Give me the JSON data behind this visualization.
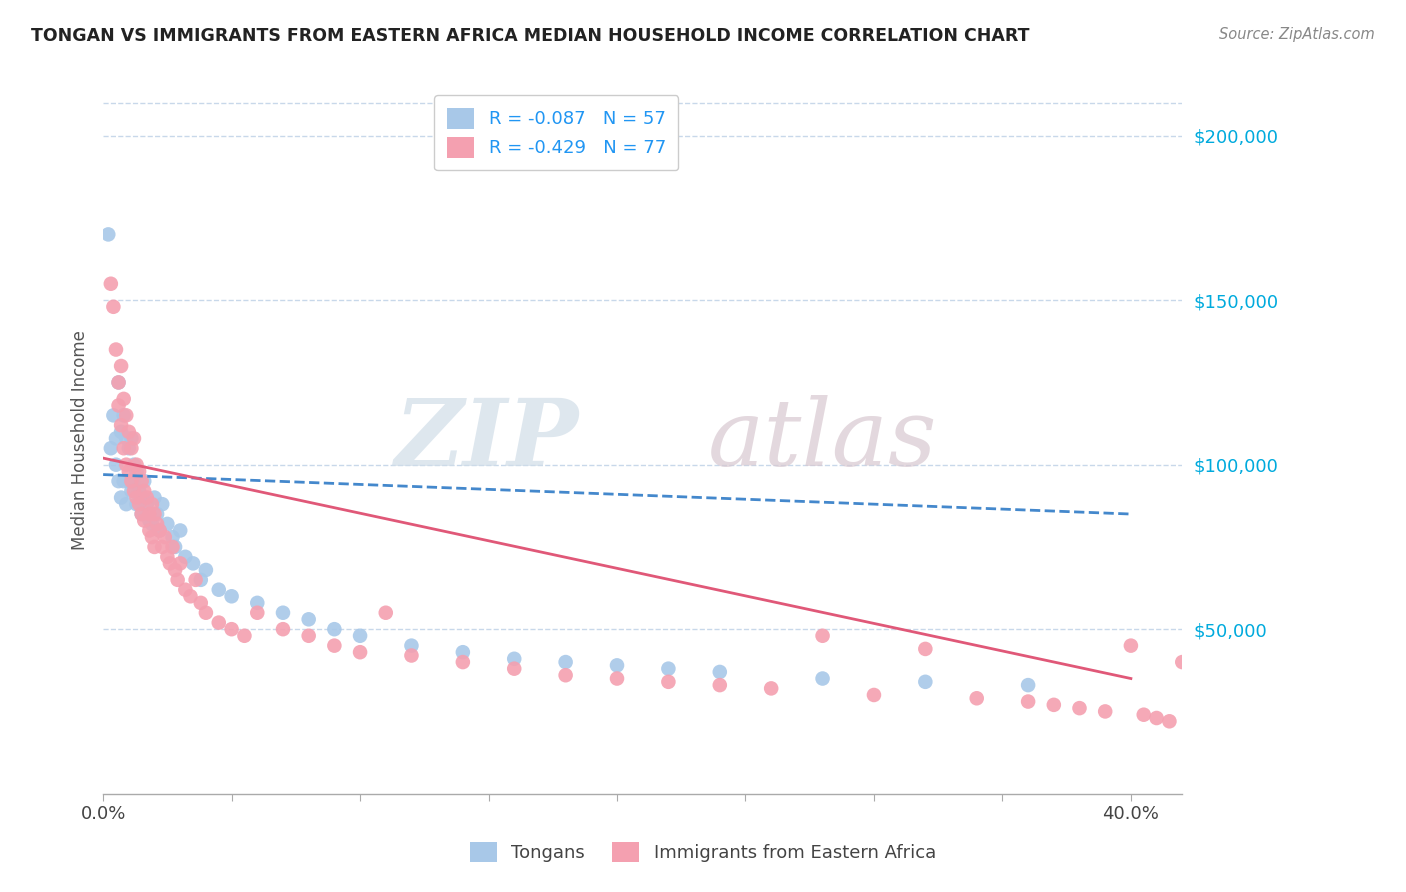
{
  "title": "TONGAN VS IMMIGRANTS FROM EASTERN AFRICA MEDIAN HOUSEHOLD INCOME CORRELATION CHART",
  "source": "Source: ZipAtlas.com",
  "ylabel": "Median Household Income",
  "legend_tongans": "Tongans",
  "legend_eastern_africa": "Immigrants from Eastern Africa",
  "blue_color": "#a8c8e8",
  "pink_color": "#f4a0b0",
  "blue_line_color": "#4488cc",
  "pink_line_color": "#e05878",
  "background_color": "#ffffff",
  "grid_color": "#c8d8ea",
  "watermark_zip": "ZIP",
  "watermark_atlas": "atlas",
  "ytick_labels": [
    "$50,000",
    "$100,000",
    "$150,000",
    "$200,000"
  ],
  "ytick_values": [
    50000,
    100000,
    150000,
    200000
  ],
  "xlim": [
    0.0,
    0.42
  ],
  "ylim": [
    0,
    215000
  ],
  "blue_r": "-0.087",
  "blue_n": "57",
  "pink_r": "-0.429",
  "pink_n": "77",
  "blue_scatter_x": [
    0.002,
    0.003,
    0.004,
    0.005,
    0.005,
    0.006,
    0.006,
    0.007,
    0.007,
    0.008,
    0.008,
    0.009,
    0.009,
    0.01,
    0.01,
    0.011,
    0.011,
    0.012,
    0.012,
    0.013,
    0.013,
    0.014,
    0.015,
    0.015,
    0.016,
    0.017,
    0.018,
    0.019,
    0.02,
    0.021,
    0.022,
    0.023,
    0.025,
    0.027,
    0.028,
    0.03,
    0.032,
    0.035,
    0.038,
    0.04,
    0.045,
    0.05,
    0.06,
    0.07,
    0.08,
    0.09,
    0.1,
    0.12,
    0.14,
    0.16,
    0.18,
    0.2,
    0.22,
    0.24,
    0.28,
    0.32,
    0.36
  ],
  "blue_scatter_y": [
    170000,
    105000,
    115000,
    108000,
    100000,
    125000,
    95000,
    110000,
    90000,
    115000,
    95000,
    108000,
    88000,
    105000,
    95000,
    108000,
    92000,
    100000,
    95000,
    98000,
    88000,
    92000,
    90000,
    85000,
    95000,
    88000,
    83000,
    82000,
    90000,
    85000,
    80000,
    88000,
    82000,
    78000,
    75000,
    80000,
    72000,
    70000,
    65000,
    68000,
    62000,
    60000,
    58000,
    55000,
    53000,
    50000,
    48000,
    45000,
    43000,
    41000,
    40000,
    39000,
    38000,
    37000,
    35000,
    34000,
    33000
  ],
  "pink_scatter_x": [
    0.003,
    0.004,
    0.005,
    0.006,
    0.006,
    0.007,
    0.007,
    0.008,
    0.008,
    0.009,
    0.009,
    0.01,
    0.01,
    0.011,
    0.011,
    0.012,
    0.012,
    0.013,
    0.013,
    0.014,
    0.014,
    0.015,
    0.015,
    0.016,
    0.016,
    0.017,
    0.018,
    0.018,
    0.019,
    0.019,
    0.02,
    0.02,
    0.021,
    0.022,
    0.023,
    0.024,
    0.025,
    0.026,
    0.027,
    0.028,
    0.029,
    0.03,
    0.032,
    0.034,
    0.036,
    0.038,
    0.04,
    0.045,
    0.05,
    0.055,
    0.06,
    0.07,
    0.08,
    0.09,
    0.1,
    0.11,
    0.12,
    0.14,
    0.16,
    0.18,
    0.2,
    0.22,
    0.24,
    0.26,
    0.28,
    0.3,
    0.32,
    0.34,
    0.36,
    0.37,
    0.38,
    0.39,
    0.4,
    0.405,
    0.41,
    0.415,
    0.42
  ],
  "pink_scatter_y": [
    155000,
    148000,
    135000,
    125000,
    118000,
    130000,
    112000,
    120000,
    105000,
    115000,
    100000,
    110000,
    98000,
    105000,
    95000,
    108000,
    92000,
    100000,
    90000,
    98000,
    88000,
    95000,
    85000,
    92000,
    83000,
    90000,
    85000,
    80000,
    88000,
    78000,
    85000,
    75000,
    82000,
    80000,
    75000,
    78000,
    72000,
    70000,
    75000,
    68000,
    65000,
    70000,
    62000,
    60000,
    65000,
    58000,
    55000,
    52000,
    50000,
    48000,
    55000,
    50000,
    48000,
    45000,
    43000,
    55000,
    42000,
    40000,
    38000,
    36000,
    35000,
    34000,
    33000,
    32000,
    48000,
    30000,
    44000,
    29000,
    28000,
    27000,
    26000,
    25000,
    45000,
    24000,
    23000,
    22000,
    40000
  ]
}
